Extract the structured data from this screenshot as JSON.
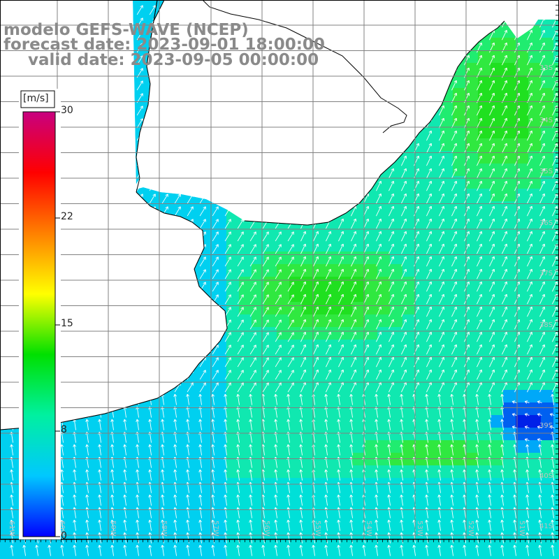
{
  "header": {
    "title": "modelo GEFS-WAVE (NCEP)",
    "forecast": "forecast date: 2023-09-01 18:00:00",
    "valid": "valid date: 2023-09-05 00:00:00"
  },
  "colorbar": {
    "unit": "[m/s]",
    "ticks": [
      "30",
      "22",
      "15",
      "8",
      "0"
    ],
    "colors": [
      "#0000ff",
      "#00c8ff",
      "#00f0a0",
      "#00e000",
      "#ffff00",
      "#ff8000",
      "#ff0000",
      "#c80080"
    ]
  },
  "grid": {
    "lon_labels": [
      "61W",
      "60W",
      "59W",
      "58W",
      "57W",
      "56W",
      "55W",
      "54W",
      "53W",
      "52W",
      "51W"
    ],
    "lat_labels": [
      "33S",
      "34S",
      "35S",
      "36S",
      "37S",
      "38S",
      "39S",
      "40S",
      "41S"
    ]
  },
  "field_colors": {
    "land": "#ffffff",
    "coast": "#000000",
    "arrows": "#ffffff",
    "grid_lines": "#808080"
  }
}
